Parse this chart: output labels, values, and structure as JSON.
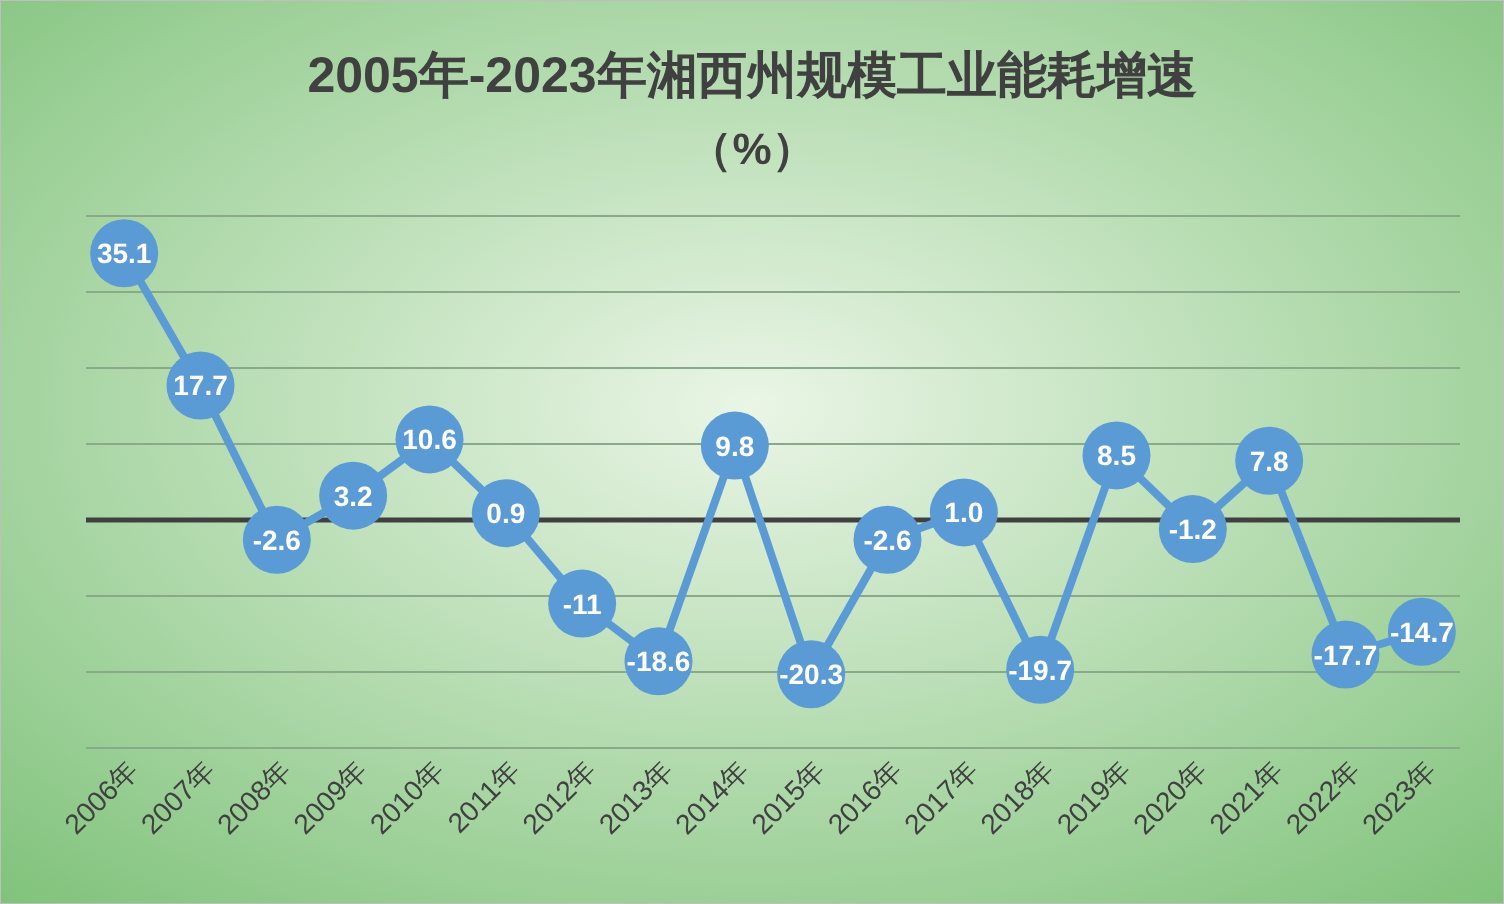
{
  "chart_data": {
    "type": "line",
    "title": "2005年-2023年湘西州规模工业能耗增速",
    "subtitle": "（%）",
    "categories": [
      "2006年",
      "2007年",
      "2008年",
      "2009年",
      "2010年",
      "2011年",
      "2012年",
      "2013年",
      "2014年",
      "2015年",
      "2016年",
      "2017年",
      "2018年",
      "2019年",
      "2020年",
      "2021年",
      "2022年",
      "2023年"
    ],
    "series": [
      {
        "color": "#5b9bd5",
        "values": [
          35.1,
          17.7,
          -2.6,
          3.2,
          10.6,
          0.9,
          -11,
          -18.6,
          9.8,
          -20.3,
          -2.6,
          1.0,
          -19.7,
          8.5,
          -1.2,
          7.8,
          -17.7,
          -14.7
        ],
        "value_labels": [
          "35.1",
          "17.7",
          "-2.6",
          "3.2",
          "10.6",
          "0.9",
          "-11",
          "-18.6",
          "9.8",
          "-20.3",
          "-2.6",
          "1.0",
          "-19.7",
          "8.5",
          "-1.2",
          "7.8",
          "-17.7",
          "-14.7"
        ]
      }
    ],
    "ylim": [
      -30,
      40
    ],
    "yticks": [
      {
        "value": -30,
        "label": null
      },
      {
        "value": -20,
        "label": null
      },
      {
        "value": -10,
        "label": null
      },
      {
        "value": 0,
        "label": null
      },
      {
        "value": 10,
        "label": null
      },
      {
        "value": 20,
        "label": null
      },
      {
        "value": 30,
        "label": null
      },
      {
        "value": 40,
        "label": null
      }
    ],
    "tick_labels": "x",
    "grid": "y",
    "marker": "circle",
    "line_style": "solid"
  }
}
